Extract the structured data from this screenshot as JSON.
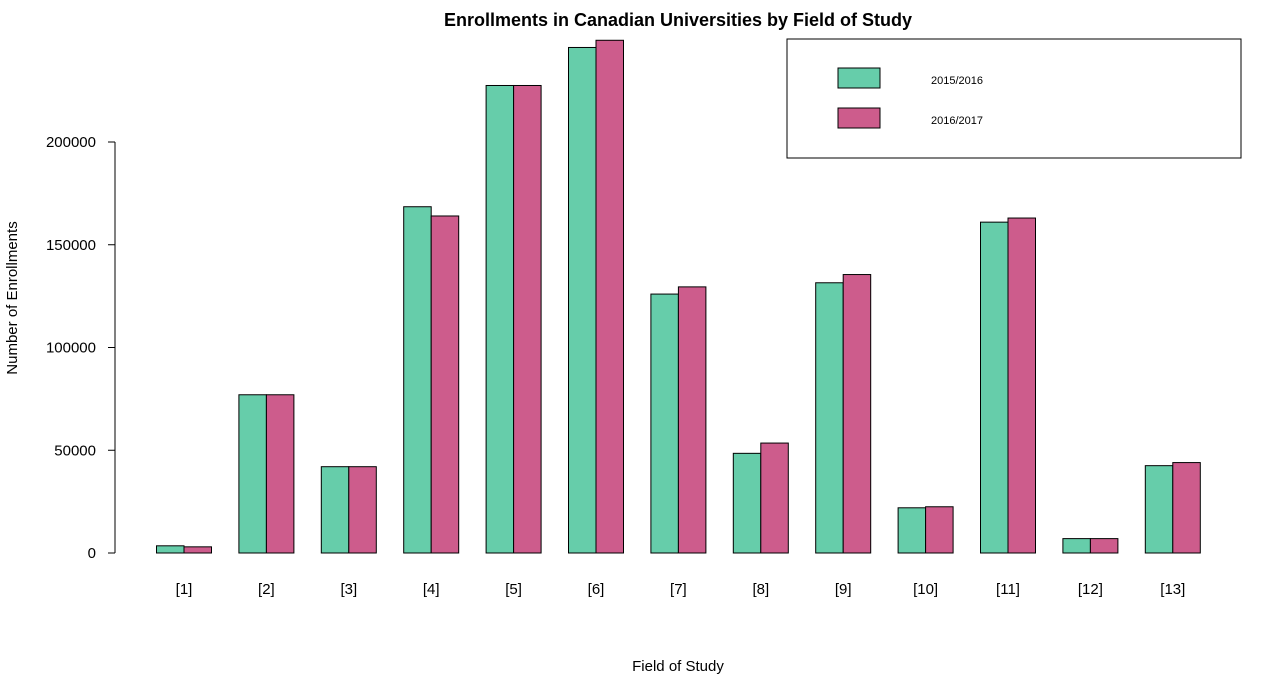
{
  "chart_data": {
    "type": "bar",
    "title": "Enrollments in Canadian Universities by Field of Study",
    "xlabel": "Field of Study",
    "ylabel": "Number of Enrollments",
    "categories": [
      "[1]",
      "[2]",
      "[3]",
      "[4]",
      "[5]",
      "[6]",
      "[7]",
      "[8]",
      "[9]",
      "[10]",
      "[11]",
      "[12]",
      "[13]"
    ],
    "series": [
      {
        "name": "2015/2016",
        "color": "#66CDAA",
        "values": [
          3500,
          77000,
          42000,
          168500,
          227500,
          246000,
          126000,
          48500,
          131500,
          22000,
          161000,
          7000,
          42500
        ]
      },
      {
        "name": "2016/2017",
        "color": "#CD5C8C",
        "values": [
          3000,
          77000,
          42000,
          164000,
          227500,
          249500,
          129500,
          53500,
          135500,
          22500,
          163000,
          7000,
          44000
        ]
      }
    ],
    "y_ticks": [
      0,
      50000,
      100000,
      150000,
      200000
    ],
    "ylim": [
      0,
      250000
    ],
    "grid": false,
    "legend_position": "top-right"
  }
}
